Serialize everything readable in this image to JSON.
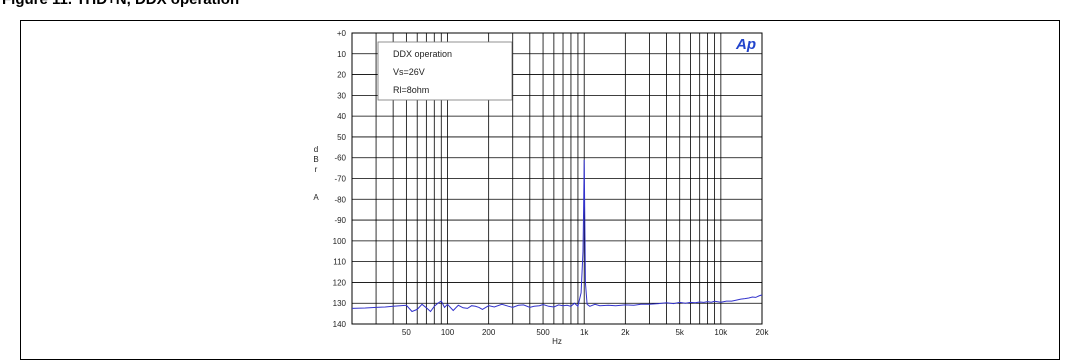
{
  "figure": {
    "caption": "Figure 11. THD+N, DDX operation"
  },
  "chart_data": {
    "type": "line",
    "logo": "Ap",
    "xlabel": "Hz",
    "ylabel": [
      "d",
      "B",
      "r",
      "A"
    ],
    "x_scale": "log",
    "xlim": [
      20,
      20000
    ],
    "ylim": [
      -140,
      0
    ],
    "grid": true,
    "x_ticks": [
      50,
      100,
      200,
      500,
      1000,
      2000,
      5000,
      10000,
      20000
    ],
    "x_tick_labels": [
      "50",
      "100",
      "200",
      "500",
      "1k",
      "2k",
      "5k",
      "10k",
      "20k"
    ],
    "y_ticks": [
      0,
      -10,
      -20,
      -30,
      -40,
      -50,
      -60,
      -70,
      -80,
      -90,
      -100,
      -110,
      -120,
      -130,
      -140
    ],
    "y_tick_labels": [
      "+0",
      "10",
      "20",
      "30",
      "40",
      "50",
      "-60",
      "-70",
      "-80",
      "-90",
      "100",
      "110",
      "120",
      "130",
      "140"
    ],
    "legend": [
      "DDX operation",
      "Vs=26V",
      "Rl=8ohm"
    ],
    "legend_position": "top-left",
    "series": [
      {
        "color": "#3333cc",
        "x": [
          20,
          25,
          30,
          35,
          40,
          45,
          50,
          55,
          60,
          65,
          70,
          75,
          80,
          85,
          90,
          95,
          100,
          110,
          120,
          130,
          140,
          150,
          160,
          170,
          180,
          200,
          220,
          250,
          280,
          300,
          330,
          360,
          400,
          430,
          470,
          500,
          550,
          600,
          650,
          700,
          750,
          800,
          850,
          900,
          950,
          980,
          990,
          1000,
          1010,
          1020,
          1050,
          1100,
          1200,
          1300,
          1500,
          1700,
          2000,
          2300,
          2600,
          3000,
          3500,
          4000,
          4500,
          5000,
          5500,
          6000,
          6500,
          7000,
          7500,
          8000,
          8500,
          9000,
          10000,
          11000,
          12000,
          13000,
          14000,
          15000,
          16000,
          17000,
          18000,
          19000,
          20000
        ],
        "y": [
          -132.5,
          -132.3,
          -132,
          -131.8,
          -131.5,
          -131.2,
          -131,
          -134,
          -133,
          -130.5,
          -132.2,
          -134,
          -131.5,
          -130,
          -129,
          -132,
          -130.5,
          -133.5,
          -131,
          -132.2,
          -132.5,
          -131.2,
          -131.5,
          -132,
          -133,
          -131.2,
          -131.8,
          -130.5,
          -131.5,
          -132,
          -131,
          -130.8,
          -132,
          -131.5,
          -131.2,
          -130.6,
          -131.5,
          -131.8,
          -130.8,
          -131.2,
          -131,
          -131.5,
          -130,
          -131.5,
          -125,
          -105,
          -85,
          -61,
          -90,
          -120,
          -130.5,
          -131.5,
          -130.5,
          -131.2,
          -131,
          -131.2,
          -130.8,
          -131,
          -130.5,
          -130.5,
          -130.2,
          -129.8,
          -130.2,
          -129.6,
          -130,
          -129.6,
          -129.8,
          -129.4,
          -129.6,
          -129.2,
          -129.5,
          -129.1,
          -129.5,
          -129,
          -129,
          -128.5,
          -128,
          -127.8,
          -127.5,
          -127,
          -127.2,
          -126.5,
          -126
        ]
      }
    ]
  }
}
